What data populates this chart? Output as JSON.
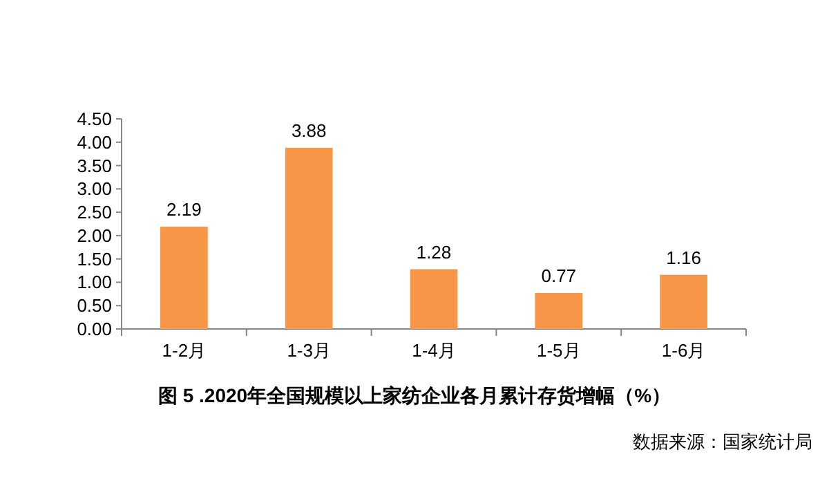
{
  "chart_data": {
    "type": "bar",
    "title": "图 5 .2020年全国规模以上家纺企业各月累计存货增幅（%）",
    "annotations": [
      "数据来源：国家统计局"
    ],
    "categories": [
      "1-2月",
      "1-3月",
      "1-4月",
      "1-5月",
      "1-6月"
    ],
    "values": [
      2.19,
      3.88,
      1.28,
      0.77,
      1.16
    ],
    "color": "#f79646",
    "data_labels": true,
    "ylim": [
      0,
      4.5
    ],
    "yticks": [
      {
        "value": 0,
        "label": "0.00"
      },
      {
        "value": 0.5,
        "label": "0.50"
      },
      {
        "value": 1,
        "label": "1.00"
      },
      {
        "value": 1.5,
        "label": "1.50"
      },
      {
        "value": 2,
        "label": "2.00"
      },
      {
        "value": 2.5,
        "label": "2.50"
      },
      {
        "value": 3,
        "label": "3.00"
      },
      {
        "value": 3.5,
        "label": "3.50"
      },
      {
        "value": 4,
        "label": "4.00"
      },
      {
        "value": 4.5,
        "label": "4.50"
      }
    ],
    "grid": false
  }
}
